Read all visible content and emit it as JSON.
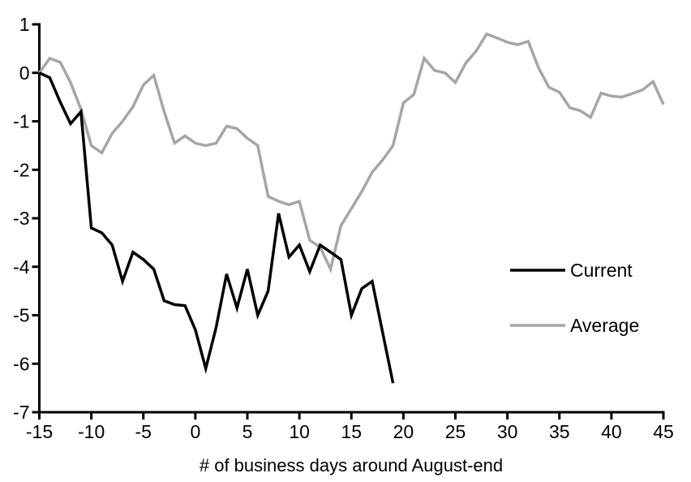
{
  "chart_data": {
    "type": "line",
    "xlabel": "# of business days around August-end",
    "ylabel": "",
    "xlim": [
      -15,
      45
    ],
    "ylim": [
      -7,
      1
    ],
    "xticks": [
      -15,
      -10,
      -5,
      0,
      5,
      10,
      15,
      20,
      25,
      30,
      35,
      40,
      45
    ],
    "yticks": [
      1,
      0,
      -1,
      -2,
      -3,
      -4,
      -5,
      -6,
      -7
    ],
    "grid": false,
    "legend_position": "middle-right",
    "axis_color": "#000000",
    "series": [
      {
        "name": "Current",
        "color": "#000000",
        "points": [
          [
            -15,
            0.0
          ],
          [
            -14,
            -0.1
          ],
          [
            -13,
            -0.6
          ],
          [
            -12,
            -1.05
          ],
          [
            -11,
            -0.8
          ],
          [
            -10,
            -3.2
          ],
          [
            -9,
            -3.3
          ],
          [
            -8,
            -3.55
          ],
          [
            -7,
            -4.3
          ],
          [
            -6,
            -3.7
          ],
          [
            -5,
            -3.85
          ],
          [
            -4,
            -4.05
          ],
          [
            -3,
            -4.7
          ],
          [
            -2,
            -4.78
          ],
          [
            -1,
            -4.8
          ],
          [
            0,
            -5.3
          ],
          [
            1,
            -6.1
          ],
          [
            2,
            -5.25
          ],
          [
            3,
            -4.15
          ],
          [
            4,
            -4.85
          ],
          [
            5,
            -4.05
          ],
          [
            6,
            -5.0
          ],
          [
            7,
            -4.5
          ],
          [
            8,
            -2.9
          ],
          [
            9,
            -3.8
          ],
          [
            10,
            -3.55
          ],
          [
            11,
            -4.1
          ],
          [
            12,
            -3.55
          ],
          [
            13,
            -3.7
          ],
          [
            14,
            -3.85
          ],
          [
            15,
            -5.0
          ],
          [
            16,
            -4.45
          ],
          [
            17,
            -4.3
          ],
          [
            18,
            -5.35
          ],
          [
            19,
            -6.4
          ]
        ]
      },
      {
        "name": "Average",
        "color": "#a6a6a6",
        "points": [
          [
            -15,
            0.0
          ],
          [
            -14,
            0.3
          ],
          [
            -13,
            0.22
          ],
          [
            -12,
            -0.2
          ],
          [
            -11,
            -0.75
          ],
          [
            -10,
            -1.5
          ],
          [
            -9,
            -1.65
          ],
          [
            -8,
            -1.25
          ],
          [
            -7,
            -1.0
          ],
          [
            -6,
            -0.7
          ],
          [
            -5,
            -0.25
          ],
          [
            -4,
            -0.05
          ],
          [
            -3,
            -0.8
          ],
          [
            -2,
            -1.45
          ],
          [
            -1,
            -1.3
          ],
          [
            0,
            -1.45
          ],
          [
            1,
            -1.5
          ],
          [
            2,
            -1.45
          ],
          [
            3,
            -1.1
          ],
          [
            4,
            -1.15
          ],
          [
            5,
            -1.35
          ],
          [
            6,
            -1.5
          ],
          [
            7,
            -2.55
          ],
          [
            8,
            -2.65
          ],
          [
            9,
            -2.72
          ],
          [
            10,
            -2.65
          ],
          [
            11,
            -3.45
          ],
          [
            12,
            -3.6
          ],
          [
            13,
            -4.05
          ],
          [
            14,
            -3.15
          ],
          [
            15,
            -2.8
          ],
          [
            16,
            -2.45
          ],
          [
            17,
            -2.05
          ],
          [
            18,
            -1.8
          ],
          [
            19,
            -1.5
          ],
          [
            20,
            -0.62
          ],
          [
            21,
            -0.45
          ],
          [
            22,
            0.3
          ],
          [
            23,
            0.05
          ],
          [
            24,
            0.0
          ],
          [
            25,
            -0.2
          ],
          [
            26,
            0.2
          ],
          [
            27,
            0.45
          ],
          [
            28,
            0.8
          ],
          [
            29,
            0.72
          ],
          [
            30,
            0.63
          ],
          [
            31,
            0.58
          ],
          [
            32,
            0.65
          ],
          [
            33,
            0.1
          ],
          [
            34,
            -0.3
          ],
          [
            35,
            -0.4
          ],
          [
            36,
            -0.72
          ],
          [
            37,
            -0.78
          ],
          [
            38,
            -0.92
          ],
          [
            39,
            -0.42
          ],
          [
            40,
            -0.48
          ],
          [
            41,
            -0.5
          ],
          [
            42,
            -0.43
          ],
          [
            43,
            -0.35
          ],
          [
            44,
            -0.18
          ],
          [
            45,
            -0.65
          ]
        ]
      }
    ]
  }
}
